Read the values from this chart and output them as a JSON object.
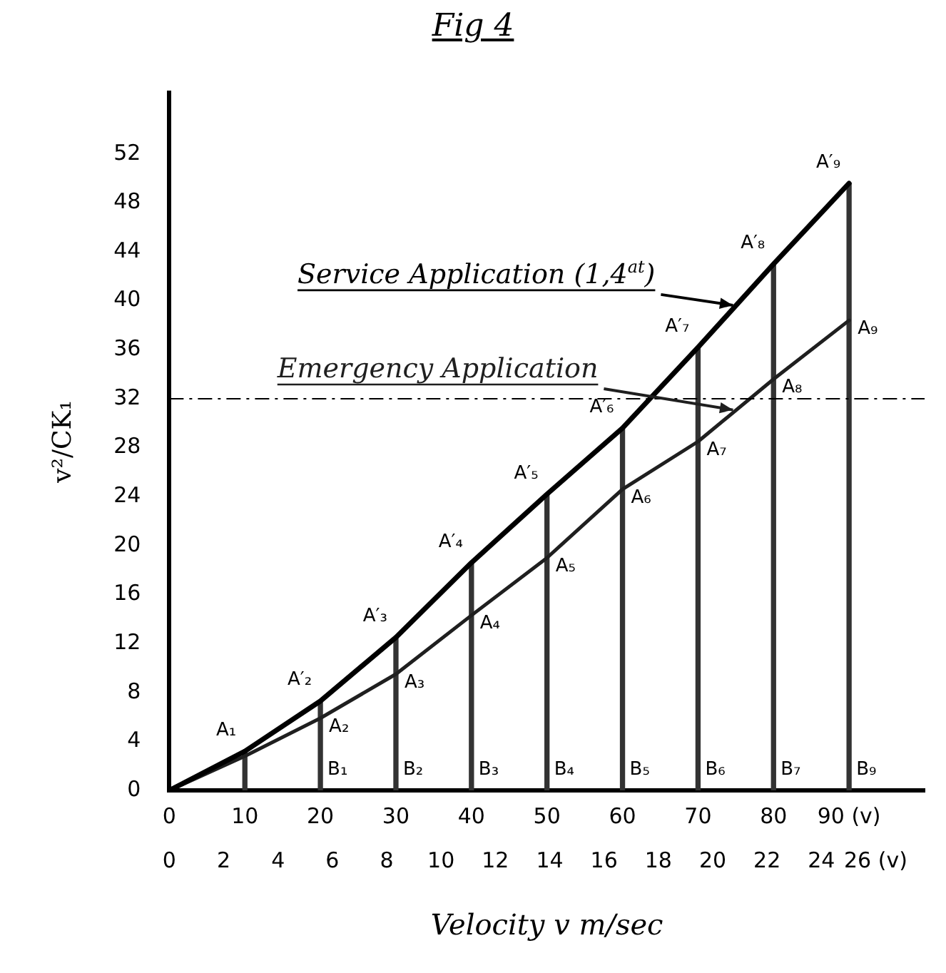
{
  "chart_data": {
    "type": "line",
    "title": "Fig 4",
    "xlabel": "Velocity v m/sec",
    "ylabel": "v²/CK₁",
    "x": [
      0,
      10,
      20,
      30,
      40,
      50,
      60,
      70,
      80,
      90
    ],
    "series": [
      {
        "type": "bar",
        "color": "#333333",
        "x": [
          10,
          20,
          30,
          40,
          50,
          60,
          70,
          80,
          90
        ],
        "values": [
          3.2,
          7.3,
          12.5,
          18.6,
          24.2,
          29.6,
          36.2,
          43,
          49.6
        ]
      },
      {
        "name": "Service Application (1,4$^{at}$)",
        "color": "#000000",
        "values": [
          0,
          3.2,
          7.3,
          12.5,
          18.6,
          24.2,
          29.6,
          36.2,
          43,
          49.6
        ]
      },
      {
        "name": "Emergency Application",
        "color": "#1f1f1f",
        "values": [
          0,
          2.8,
          5.9,
          9.5,
          14.3,
          19,
          24.6,
          28.5,
          33.6,
          38.4
        ]
      }
    ],
    "xlim": [
      0,
      100
    ],
    "xticks": [
      0,
      10,
      20,
      30,
      40,
      50,
      60,
      70,
      80,
      {
        "value": 90,
        "label": "90 (v)"
      }
    ],
    "x2lim": [
      0,
      27.8
    ],
    "x2ticks": [
      0,
      2,
      4,
      6,
      8,
      10,
      12,
      14,
      16,
      18,
      20,
      22,
      24,
      {
        "value": 26,
        "label": "26 (v)"
      }
    ],
    "ylim": [
      0,
      57
    ],
    "yticks": [
      0,
      4,
      8,
      12,
      16,
      20,
      24,
      28,
      32,
      36,
      40,
      44,
      48,
      52
    ],
    "ref_lines": [
      {
        "axis": "y",
        "value": 32,
        "line_style": "dashed",
        "color": "#000000"
      }
    ],
    "marker": "none",
    "annotations": [
      {
        "text": "A₁",
        "x": 10,
        "y": 3.2
      },
      {
        "text": "A′₂",
        "x": 20,
        "y": 7.3
      },
      {
        "text": "A′₃",
        "x": 30,
        "y": 12.5
      },
      {
        "text": "A′₄",
        "x": 40,
        "y": 18.6
      },
      {
        "text": "A′₅",
        "x": 50,
        "y": 24.2
      },
      {
        "text": "A′₆",
        "x": 60,
        "y": 29.6
      },
      {
        "text": "A′₇",
        "x": 70,
        "y": 36.2
      },
      {
        "text": "A′₈",
        "x": 80,
        "y": 43
      },
      {
        "text": "A′₉",
        "x": 90,
        "y": 49.6
      },
      {
        "text": "A₂",
        "x": 20,
        "y": 5.9
      },
      {
        "text": "A₃",
        "x": 30,
        "y": 9.5
      },
      {
        "text": "A₄",
        "x": 40,
        "y": 14.3
      },
      {
        "text": "A₅",
        "x": 50,
        "y": 19
      },
      {
        "text": "A₆",
        "x": 60,
        "y": 24.6
      },
      {
        "text": "A₇",
        "x": 70,
        "y": 28.5
      },
      {
        "text": "A₈",
        "x": 80,
        "y": 33.6
      },
      {
        "text": "A₉",
        "x": 90,
        "y": 38.4
      },
      {
        "text": "B₁",
        "x": 20,
        "y": 0
      },
      {
        "text": "B₂",
        "x": 30,
        "y": 0
      },
      {
        "text": "B₃",
        "x": 40,
        "y": 0
      },
      {
        "text": "B₄",
        "x": 50,
        "y": 0
      },
      {
        "text": "B₅",
        "x": 60,
        "y": 0
      },
      {
        "text": "B₆",
        "x": 70,
        "y": 0
      },
      {
        "text": "B₇",
        "x": 80,
        "y": 0
      },
      {
        "text": "B₉",
        "x": 90,
        "y": 0
      }
    ]
  }
}
